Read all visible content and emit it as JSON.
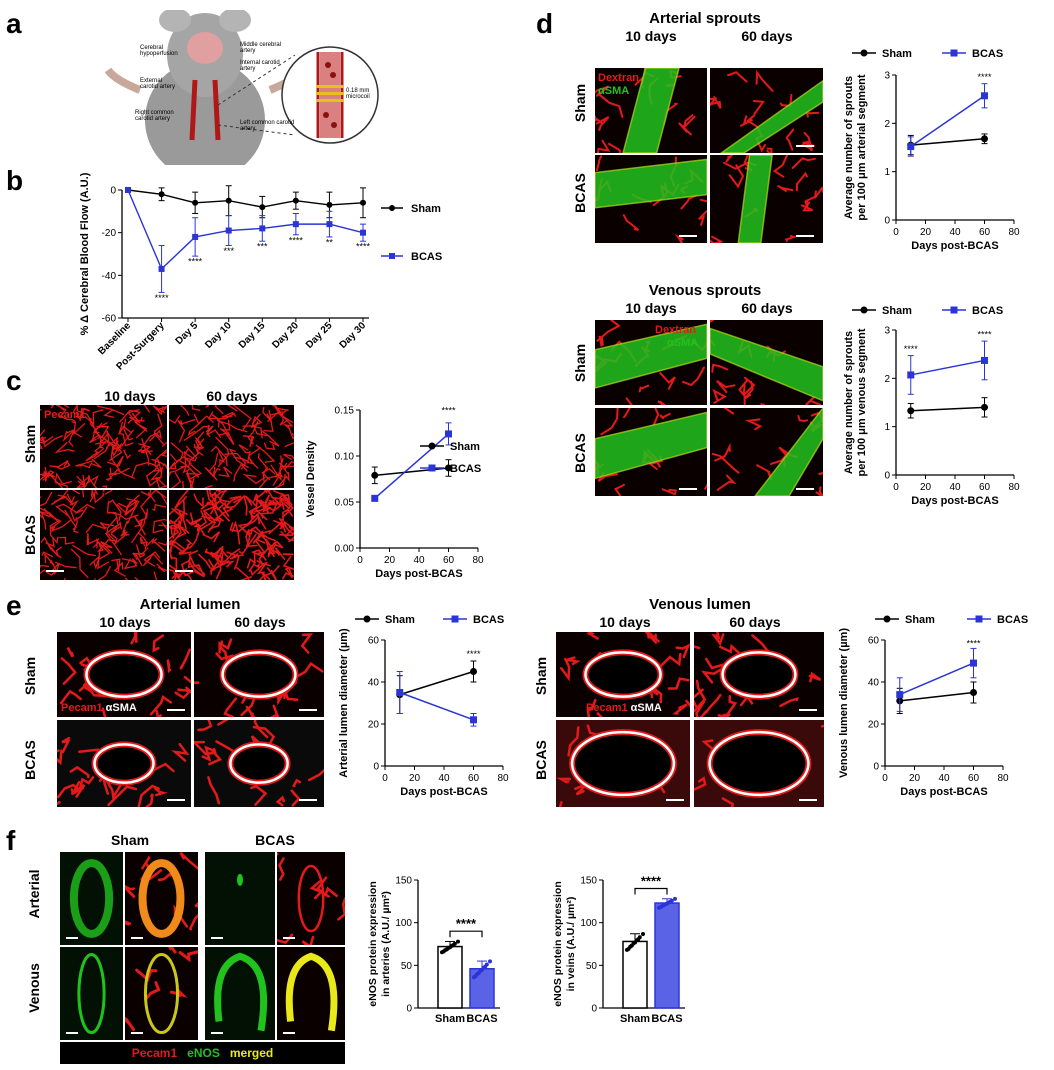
{
  "panel_letters": [
    "a",
    "b",
    "c",
    "d",
    "e",
    "f"
  ],
  "panel_a": {
    "labels": [
      "Cerebral hypoperfusion",
      "Middle cerebral artery",
      "Internal carotid artery",
      "External carotid artery",
      "Right common carotid artery",
      "Left common carotid artery",
      "0.18 mm microcoil"
    ]
  },
  "panel_c": {
    "headers": [
      "10 days",
      "60 days"
    ],
    "rows": [
      "Sham",
      "BCAS"
    ],
    "stain": "Pecam1"
  },
  "panel_d": {
    "arterial_title": "Arterial sprouts",
    "venous_title": "Venous sprouts",
    "headers": [
      "10 days",
      "60 days"
    ],
    "rows": [
      "Sham",
      "BCAS"
    ],
    "stain1": "Dextran",
    "stain2": "αSMA"
  },
  "panel_e": {
    "arterial_title": "Arterial lumen",
    "venous_title": "Venous lumen",
    "headers": [
      "10 days",
      "60 days"
    ],
    "rows": [
      "Sham",
      "BCAS"
    ],
    "stain1": "Pecam1",
    "stain2": "αSMA"
  },
  "panel_f": {
    "group_headers": [
      "Sham",
      "BCAS"
    ],
    "rows": [
      "Arterial",
      "Venous"
    ],
    "legend": [
      "Pecam1",
      "eNOS",
      "merged"
    ]
  },
  "colors": {
    "sham": "#000000",
    "bcas": "#2b35d6",
    "red": "#e21a1a",
    "green": "#22c21e",
    "yellow": "#e8e81a"
  },
  "chart_data": [
    {
      "id": "b",
      "type": "line",
      "categories": [
        "Baseline",
        "Post-Surgery",
        "Day 5",
        "Day 10",
        "Day 15",
        "Day 20",
        "Day 25",
        "Day 30"
      ],
      "ylabel": "% Δ Cerebral Blood Flow (A.U.)",
      "ylim": [
        -60,
        0
      ],
      "yticks": [
        "0",
        "-20",
        "-40",
        "-60"
      ],
      "series": [
        {
          "name": "Sham",
          "values": [
            0,
            -2,
            -6,
            -5,
            -8,
            -5,
            -7,
            -6
          ],
          "err": [
            0,
            3,
            5,
            7,
            5,
            4,
            6,
            7
          ]
        },
        {
          "name": "BCAS",
          "values": [
            0,
            -37,
            -22,
            -19,
            -18,
            -16,
            -16,
            -20
          ],
          "err": [
            0,
            11,
            9,
            7,
            6,
            5,
            6,
            4
          ]
        }
      ],
      "annotations": [
        "****",
        "****",
        "***",
        "***",
        "****",
        "**",
        "****"
      ],
      "legend_position": "right"
    },
    {
      "id": "c",
      "type": "line",
      "xlabel": "Days post-BCAS",
      "ylabel": "Vessel Density",
      "x": [
        10,
        60
      ],
      "xlim": [
        0,
        80
      ],
      "ylim": [
        0,
        0.15
      ],
      "xticks": [
        "0",
        "20",
        "40",
        "60",
        "80"
      ],
      "yticks": [
        "0.00",
        "0.05",
        "0.10",
        "0.15"
      ],
      "series": [
        {
          "name": "Sham",
          "values": [
            0.079,
            0.087
          ],
          "err": [
            0.009,
            0.009
          ]
        },
        {
          "name": "BCAS",
          "values": [
            0.054,
            0.124
          ],
          "err": [
            0.003,
            0.012
          ]
        }
      ],
      "annotations": [
        "****"
      ]
    },
    {
      "id": "d-arterial",
      "type": "line",
      "xlabel": "Days post-BCAS",
      "ylabel": "Average number of sprouts per 100 μm arterial segment",
      "x": [
        10,
        60
      ],
      "xlim": [
        0,
        80
      ],
      "ylim": [
        0,
        3
      ],
      "xticks": [
        "0",
        "20",
        "40",
        "60",
        "80"
      ],
      "yticks": [
        "0",
        "1",
        "2",
        "3"
      ],
      "series": [
        {
          "name": "Sham",
          "values": [
            1.55,
            1.68
          ],
          "err": [
            0.2,
            0.1
          ]
        },
        {
          "name": "BCAS",
          "values": [
            1.52,
            2.57
          ],
          "err": [
            0.2,
            0.25
          ]
        }
      ],
      "annotations": [
        "****"
      ]
    },
    {
      "id": "d-venous",
      "type": "line",
      "xlabel": "Days post-BCAS",
      "ylabel": "Average number of sprouts per 100 μm venous segment",
      "x": [
        10,
        60
      ],
      "xlim": [
        0,
        80
      ],
      "ylim": [
        0,
        3
      ],
      "xticks": [
        "0",
        "20",
        "40",
        "60",
        "80"
      ],
      "yticks": [
        "0",
        "1",
        "2",
        "3"
      ],
      "series": [
        {
          "name": "Sham",
          "values": [
            1.33,
            1.4
          ],
          "err": [
            0.15,
            0.2
          ]
        },
        {
          "name": "BCAS",
          "values": [
            2.07,
            2.37
          ],
          "err": [
            0.4,
            0.4
          ]
        }
      ],
      "annotations": [
        "****",
        "****"
      ]
    },
    {
      "id": "e-arterial",
      "type": "line",
      "xlabel": "Days post-BCAS",
      "ylabel": "Arterial lumen diameter (µm)",
      "x": [
        10,
        60
      ],
      "xlim": [
        0,
        80
      ],
      "ylim": [
        0,
        60
      ],
      "xticks": [
        "0",
        "20",
        "40",
        "60",
        "80"
      ],
      "yticks": [
        "0",
        "20",
        "40",
        "60"
      ],
      "series": [
        {
          "name": "Sham",
          "values": [
            34,
            45
          ],
          "err": [
            9,
            5
          ]
        },
        {
          "name": "BCAS",
          "values": [
            35,
            22
          ],
          "err": [
            10,
            3
          ]
        }
      ],
      "annotations": [
        "****"
      ]
    },
    {
      "id": "e-venous",
      "type": "line",
      "xlabel": "Days post-BCAS",
      "ylabel": "Venous lumen diameter (µm)",
      "x": [
        10,
        60
      ],
      "xlim": [
        0,
        80
      ],
      "ylim": [
        0,
        60
      ],
      "xticks": [
        "0",
        "20",
        "40",
        "60",
        "80"
      ],
      "yticks": [
        "0",
        "20",
        "40",
        "60"
      ],
      "series": [
        {
          "name": "Sham",
          "values": [
            31,
            35
          ],
          "err": [
            6,
            5
          ]
        },
        {
          "name": "BCAS",
          "values": [
            34,
            49
          ],
          "err": [
            8,
            7
          ]
        }
      ],
      "annotations": [
        "****"
      ]
    },
    {
      "id": "f-arteries",
      "type": "bar",
      "categories": [
        "Sham",
        "BCAS"
      ],
      "ylabel": "eNOS protein expression in arteries (A.U./ µm²)",
      "ylim": [
        0,
        150
      ],
      "yticks": [
        "0",
        "50",
        "100",
        "150"
      ],
      "values": [
        72,
        46
      ],
      "err": [
        6,
        9
      ],
      "annotations": [
        "****"
      ]
    },
    {
      "id": "f-veins",
      "type": "bar",
      "categories": [
        "Sham",
        "BCAS"
      ],
      "ylabel": "eNOS protein expression in veins (A.U./ µm²)",
      "ylim": [
        0,
        150
      ],
      "yticks": [
        "0",
        "50",
        "100",
        "150"
      ],
      "values": [
        78,
        123
      ],
      "err": [
        9,
        5
      ],
      "annotations": [
        "****"
      ]
    }
  ]
}
